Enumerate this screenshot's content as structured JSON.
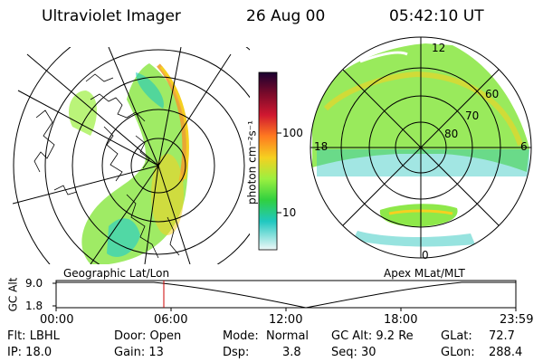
{
  "header": {
    "instrument": "Ultraviolet Imager",
    "date": "26 Aug 00",
    "time": "05:42:10 UT"
  },
  "left_panel": {
    "label": "Geographic Lat/Lon"
  },
  "right_panel": {
    "label": "Apex MLat/MLT",
    "mlt_labels": [
      "12",
      "18",
      "6",
      "0"
    ],
    "mlat_labels": [
      "60",
      "70",
      "80"
    ]
  },
  "colorbar": {
    "unit": "photon cm⁻²s⁻¹",
    "tick_labels": [
      "100",
      "10"
    ],
    "colors": [
      "#2a0a40",
      "#7a0a2a",
      "#d01830",
      "#ff7a20",
      "#f5d020",
      "#9cf040",
      "#30d040",
      "#20c8c0",
      "#dff8f8"
    ]
  },
  "altitude_plot": {
    "axis_label": "GC Alt",
    "y_ticks": [
      "9.0",
      "1.8"
    ],
    "x_ticks": [
      "00:00",
      "06:00",
      "12:00",
      "18:00",
      "23:59"
    ],
    "marker_time_hours": 5.7,
    "trough_time_hours": 13.8
  },
  "info": {
    "row1": {
      "filter": "Flt: LBHL",
      "door": "Door: Open",
      "mode_label": "Mode:",
      "mode_value": "Normal",
      "gc_alt": "GC Alt: 9.2 Re",
      "glat_label": "GLat:",
      "glat_value": "72.7"
    },
    "row2": {
      "ip": "IP: 18.0",
      "gain": "Gain: 13",
      "dsp_label": "Dsp:",
      "dsp_value": "3.8",
      "seq": "Seq: 30",
      "glon_label": "GLon:",
      "glon_value": "288.4"
    }
  }
}
